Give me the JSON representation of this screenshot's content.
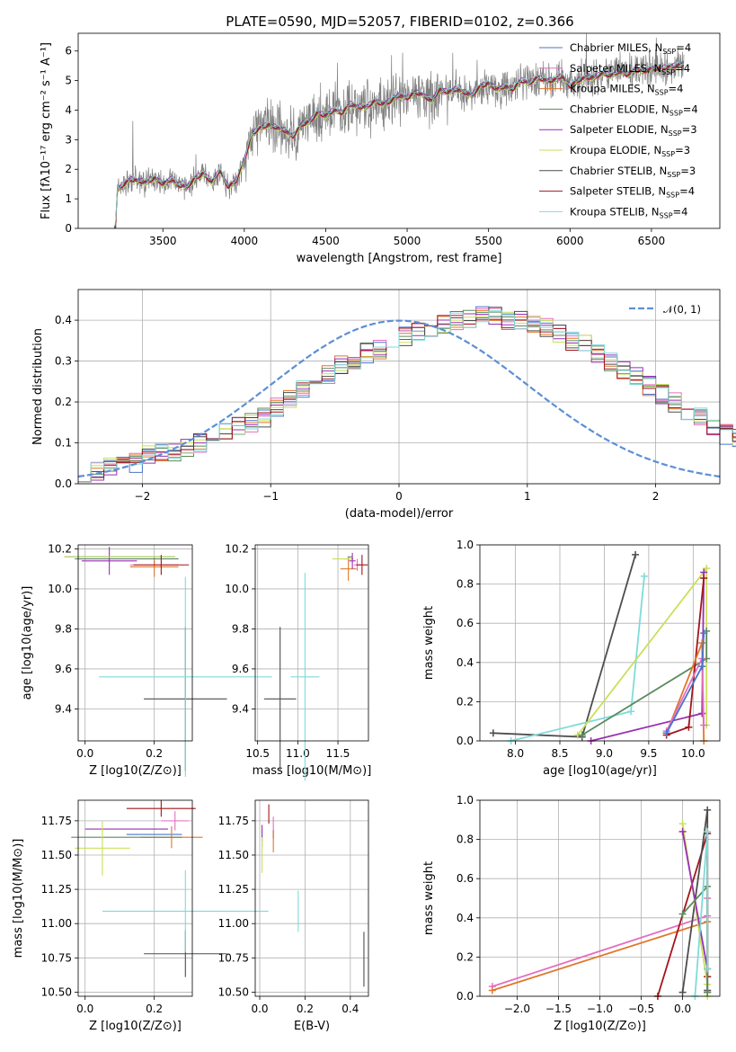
{
  "title": "PLATE=0590, MJD=52057, FIBERID=0102, z=0.366",
  "colors": {
    "chabrier_miles": "#4a74c9",
    "salpeter_miles": "#e36fc1",
    "kroupa_miles": "#e0772b",
    "chabrier_elodie": "#5c8a5c",
    "salpeter_elodie": "#9a2fb3",
    "kroupa_elodie": "#c8e05a",
    "chabrier_stelib": "#4d4d4d",
    "salpeter_stelib": "#a3141b",
    "kroupa_stelib": "#7fdbd9",
    "spectrum": "#7f7f7f",
    "normal_curve": "#5b8fd6"
  },
  "chart_data": [
    {
      "type": "line",
      "panel": "spectrum",
      "title": "PLATE=0590, MJD=52057, FIBERID=0102, z=0.366",
      "xlabel": "wavelength [Angstrom, rest frame]",
      "ylabel": "Flux [fλ10⁻¹⁷ erg cm⁻² s⁻¹ A⁻¹]",
      "xlim": [
        2980,
        6920
      ],
      "ylim": [
        0,
        6.6
      ],
      "xticks": [
        3500,
        4000,
        4500,
        5000,
        5500,
        6000,
        6500
      ],
      "yticks": [
        0,
        1,
        2,
        3,
        4,
        5,
        6
      ],
      "legend_position": "top-right",
      "model_continuum": {
        "x": [
          3200,
          3210,
          3220,
          3240,
          3300,
          3350,
          3400,
          3450,
          3500,
          3550,
          3600,
          3650,
          3700,
          3750,
          3800,
          3850,
          3900,
          3950,
          4000,
          4050,
          4100,
          4150,
          4200,
          4250,
          4300,
          4350,
          4400,
          4450,
          4500,
          4550,
          4600,
          4650,
          4700,
          4750,
          4800,
          4850,
          4900,
          4950,
          5000,
          5050,
          5100,
          5150,
          5200,
          5250,
          5300,
          5350,
          5400,
          5450,
          5500,
          5550,
          5600,
          5650,
          5700,
          5750,
          5800,
          5850,
          5900,
          5950,
          6000,
          6050,
          6100,
          6150,
          6200,
          6250,
          6300,
          6350,
          6400,
          6450,
          6500,
          6550,
          6600,
          6650,
          6700
        ],
        "y": [
          0.0,
          0.0,
          1.3,
          1.4,
          1.65,
          1.6,
          1.55,
          1.7,
          1.5,
          1.65,
          1.45,
          1.4,
          1.7,
          1.85,
          1.55,
          1.95,
          1.4,
          1.6,
          2.3,
          3.2,
          3.4,
          3.5,
          3.4,
          3.3,
          3.1,
          3.5,
          3.6,
          3.9,
          3.8,
          4.0,
          3.9,
          4.2,
          4.1,
          4.1,
          4.3,
          4.2,
          4.3,
          4.5,
          4.4,
          4.6,
          4.5,
          4.3,
          4.7,
          4.6,
          4.7,
          4.6,
          4.5,
          4.8,
          4.9,
          4.7,
          4.8,
          4.7,
          5.0,
          4.9,
          5.1,
          5.0,
          5.0,
          5.15,
          4.8,
          5.0,
          5.1,
          5.1,
          5.25,
          5.15,
          5.3,
          5.2,
          5.35,
          5.3,
          5.4,
          5.4,
          5.45,
          5.5,
          5.55
        ]
      },
      "legend": [
        "Chabrier MILES, N_SSP=4",
        "Salpeter MILES, N_SSP=4",
        "Kroupa MILES, N_SSP=4",
        "Chabrier ELODIE, N_SSP=4",
        "Salpeter ELODIE, N_SSP=3",
        "Kroupa ELODIE, N_SSP=3",
        "Chabrier STELIB, N_SSP=3",
        "Salpeter STELIB, N_SSP=4",
        "Kroupa STELIB, N_SSP=4"
      ]
    },
    {
      "type": "line",
      "panel": "residual-histogram",
      "xlabel": "(data-model)/error",
      "ylabel": "Normed distribution",
      "xlim": [
        -2.5,
        2.5
      ],
      "ylim": [
        0,
        0.475
      ],
      "xticks": [
        -2,
        -1,
        0,
        1,
        2
      ],
      "yticks": [
        0.0,
        0.1,
        0.2,
        0.3,
        0.4
      ],
      "grid": true,
      "legend": [
        "𝒩(0, 1)"
      ],
      "legend_position": "top-right",
      "bin_edges_start": -2.5,
      "bin_width": 0.1,
      "histogram": [
        0.03,
        0.03,
        0.04,
        0.05,
        0.05,
        0.07,
        0.08,
        0.08,
        0.09,
        0.1,
        0.11,
        0.13,
        0.14,
        0.15,
        0.16,
        0.19,
        0.21,
        0.23,
        0.25,
        0.27,
        0.29,
        0.3,
        0.32,
        0.33,
        0.34,
        0.36,
        0.37,
        0.38,
        0.39,
        0.4,
        0.4,
        0.41,
        0.41,
        0.4,
        0.4,
        0.39,
        0.38,
        0.37,
        0.35,
        0.34,
        0.32,
        0.3,
        0.28,
        0.26,
        0.24,
        0.22,
        0.2,
        0.18,
        0.16,
        0.14,
        0.12,
        0.11,
        0.1,
        0.09,
        0.08,
        0.07,
        0.06,
        0.05,
        0.04,
        0.04
      ]
    },
    {
      "type": "scatter",
      "panel": "age-vs-Z",
      "xlabel": "Z [log10(Z/Z⊙)]",
      "ylabel": "age  [log10(age/yr)]",
      "xlim": [
        -0.02,
        0.31
      ],
      "ylim": [
        9.24,
        10.22
      ],
      "xticks": [
        0.0,
        0.2
      ],
      "yticks": [
        9.4,
        9.6,
        9.8,
        10.0,
        10.2
      ],
      "grid": true,
      "points": [
        {
          "series": "chabrier_miles",
          "x": 0.1,
          "y": 10.16,
          "xerr": 0.16,
          "yerr": 0.0
        },
        {
          "series": "salpeter_miles",
          "x": 0.2,
          "y": 10.12,
          "xerr": 0.07,
          "yerr": 0.02
        },
        {
          "series": "kroupa_miles",
          "x": 0.2,
          "y": 10.11,
          "xerr": 0.07,
          "yerr": 0.05
        },
        {
          "series": "chabrier_elodie",
          "x": 0.12,
          "y": 10.15,
          "xerr": 0.15,
          "yerr": 0.0
        },
        {
          "series": "salpeter_elodie",
          "x": 0.07,
          "y": 10.14,
          "xerr": 0.08,
          "yerr": 0.07
        },
        {
          "series": "kroupa_elodie",
          "x": 0.1,
          "y": 10.16,
          "xerr": 0.16,
          "yerr": 0.0
        },
        {
          "series": "chabrier_stelib",
          "x": 0.29,
          "y": 9.45,
          "xerr": 0.12,
          "yerr": 0.36
        },
        {
          "series": "salpeter_stelib",
          "x": 0.22,
          "y": 10.12,
          "xerr": 0.08,
          "yerr": 0.05
        },
        {
          "series": "kroupa_stelib",
          "x": 0.29,
          "y": 9.56,
          "xerr": 0.25,
          "yerr": 0.5
        }
      ]
    },
    {
      "type": "scatter",
      "panel": "age-vs-mass",
      "xlabel": "mass [log10(M/M⊙)]",
      "ylabel": "",
      "xlim": [
        10.47,
        11.88
      ],
      "ylim": [
        9.24,
        10.22
      ],
      "xticks": [
        10.5,
        11.0,
        11.5
      ],
      "yticks": [
        9.4,
        9.6,
        9.8,
        10.0,
        10.2
      ],
      "grid": true,
      "points": [
        {
          "series": "chabrier_miles",
          "x": 11.65,
          "y": 10.16,
          "xerr": 0.03,
          "yerr": 0.0
        },
        {
          "series": "salpeter_miles",
          "x": 11.74,
          "y": 10.12,
          "xerr": 0.04,
          "yerr": 0.03
        },
        {
          "series": "kroupa_miles",
          "x": 11.63,
          "y": 10.1,
          "xerr": 0.1,
          "yerr": 0.06
        },
        {
          "series": "chabrier_elodie",
          "x": 11.63,
          "y": 10.15,
          "xerr": 0.06,
          "yerr": 0.0
        },
        {
          "series": "salpeter_elodie",
          "x": 11.68,
          "y": 10.14,
          "xerr": 0.04,
          "yerr": 0.04
        },
        {
          "series": "kroupa_elodie",
          "x": 11.55,
          "y": 10.15,
          "xerr": 0.12,
          "yerr": 0.0
        },
        {
          "series": "chabrier_stelib",
          "x": 10.78,
          "y": 9.45,
          "xerr": 0.2,
          "yerr": 0.36
        },
        {
          "series": "salpeter_stelib",
          "x": 11.8,
          "y": 10.12,
          "xerr": 0.07,
          "yerr": 0.05
        },
        {
          "series": "kroupa_stelib",
          "x": 11.09,
          "y": 9.56,
          "xerr": 0.18,
          "yerr": 0.52
        }
      ]
    },
    {
      "type": "line",
      "panel": "mass-weight-vs-age",
      "xlabel": "age  [log10(age/yr)]",
      "ylabel": "mass weight",
      "xlim": [
        7.6,
        10.3
      ],
      "ylim": [
        0,
        1.0
      ],
      "xticks": [
        8.0,
        8.5,
        9.0,
        9.5,
        10.0
      ],
      "yticks": [
        0.0,
        0.2,
        0.4,
        0.6,
        0.8,
        1.0
      ],
      "grid": true,
      "series": [
        {
          "key": "chabrier_stelib",
          "x": [
            7.75,
            8.75,
            9.35
          ],
          "y": [
            0.04,
            0.02,
            0.95
          ]
        },
        {
          "key": "kroupa_stelib",
          "x": [
            7.95,
            9.3,
            9.45
          ],
          "y": [
            0.0,
            0.15,
            0.84
          ]
        },
        {
          "key": "kroupa_elodie",
          "x": [
            8.7,
            10.15,
            10.15
          ],
          "y": [
            0.03,
            0.88,
            0.08
          ]
        },
        {
          "key": "chabrier_elodie",
          "x": [
            8.75,
            10.15,
            10.15
          ],
          "y": [
            0.03,
            0.42,
            0.56
          ]
        },
        {
          "key": "salpeter_elodie",
          "x": [
            8.85,
            10.1,
            10.12
          ],
          "y": [
            0.0,
            0.14,
            0.86
          ]
        },
        {
          "key": "salpeter_stelib",
          "x": [
            9.7,
            9.95,
            10.12
          ],
          "y": [
            0.03,
            0.07,
            0.83
          ]
        },
        {
          "key": "kroupa_miles",
          "x": [
            9.7,
            10.1,
            10.12
          ],
          "y": [
            0.04,
            0.5,
            0.0
          ]
        },
        {
          "key": "salpeter_miles",
          "x": [
            9.7,
            10.1,
            10.12
          ],
          "y": [
            0.05,
            0.42,
            0.08
          ]
        },
        {
          "key": "chabrier_miles",
          "x": [
            9.7,
            10.1,
            10.12
          ],
          "y": [
            0.04,
            0.38,
            0.55
          ]
        }
      ]
    },
    {
      "type": "scatter",
      "panel": "mass-vs-Z",
      "xlabel": "Z [log10(Z/Z⊙)]",
      "ylabel": "mass [log10(M/M⊙)]",
      "xlim": [
        -0.02,
        0.31
      ],
      "ylim": [
        10.47,
        11.9
      ],
      "xticks": [
        0.0,
        0.2
      ],
      "yticks": [
        10.5,
        10.75,
        11.0,
        11.25,
        11.5,
        11.75
      ],
      "grid": true,
      "points": [
        {
          "series": "chabrier_miles",
          "x": 0.2,
          "y": 11.65,
          "xerr": 0.08,
          "yerr": 0.0
        },
        {
          "series": "salpeter_miles",
          "x": 0.26,
          "y": 11.75,
          "xerr": 0.04,
          "yerr": 0.07
        },
        {
          "series": "kroupa_miles",
          "x": 0.25,
          "y": 11.63,
          "xerr": 0.09,
          "yerr": 0.08
        },
        {
          "series": "chabrier_elodie",
          "x": 0.12,
          "y": 11.63,
          "xerr": 0.16,
          "yerr": 0.0
        },
        {
          "series": "salpeter_elodie",
          "x": 0.12,
          "y": 11.69,
          "xerr": 0.12,
          "yerr": 0.0
        },
        {
          "series": "kroupa_elodie",
          "x": 0.05,
          "y": 11.55,
          "xerr": 0.08,
          "yerr": 0.2
        },
        {
          "series": "chabrier_stelib",
          "x": 0.29,
          "y": 10.78,
          "xerr": 0.12,
          "yerr": 0.17
        },
        {
          "series": "salpeter_stelib",
          "x": 0.22,
          "y": 11.84,
          "xerr": 0.1,
          "yerr": 0.06
        },
        {
          "series": "kroupa_stelib",
          "x": 0.29,
          "y": 11.09,
          "xerr": 0.24,
          "yerr": 0.3
        }
      ]
    },
    {
      "type": "scatter",
      "panel": "mass-vs-EBV",
      "xlabel": "E(B-V)",
      "ylabel": "",
      "xlim": [
        -0.02,
        0.48
      ],
      "ylim": [
        10.47,
        11.9
      ],
      "xticks": [
        0.0,
        0.2,
        0.4
      ],
      "yticks": [
        10.5,
        10.75,
        11.0,
        11.25,
        11.5,
        11.75
      ],
      "grid": true,
      "points": [
        {
          "series": "chabrier_miles",
          "x": 0.06,
          "y": 11.65,
          "xerr": 0.0,
          "yerr": 0.03
        },
        {
          "series": "salpeter_miles",
          "x": 0.06,
          "y": 11.72,
          "xerr": 0.0,
          "yerr": 0.06
        },
        {
          "series": "kroupa_miles",
          "x": 0.06,
          "y": 11.6,
          "xerr": 0.0,
          "yerr": 0.08
        },
        {
          "series": "chabrier_elodie",
          "x": 0.01,
          "y": 11.62,
          "xerr": 0.0,
          "yerr": 0.06
        },
        {
          "series": "salpeter_elodie",
          "x": 0.01,
          "y": 11.66,
          "xerr": 0.0,
          "yerr": 0.06
        },
        {
          "series": "kroupa_elodie",
          "x": 0.01,
          "y": 11.5,
          "xerr": 0.0,
          "yerr": 0.13
        },
        {
          "series": "chabrier_stelib",
          "x": 0.46,
          "y": 10.74,
          "xerr": 0.0,
          "yerr": 0.2
        },
        {
          "series": "salpeter_stelib",
          "x": 0.04,
          "y": 11.8,
          "xerr": 0.0,
          "yerr": 0.07
        },
        {
          "series": "kroupa_stelib",
          "x": 0.17,
          "y": 11.09,
          "xerr": 0.0,
          "yerr": 0.15
        }
      ]
    },
    {
      "type": "line",
      "panel": "mass-weight-vs-Z",
      "xlabel": "Z [log10(Z/Z⊙)]",
      "ylabel": "mass weight",
      "xlim": [
        -2.45,
        0.45
      ],
      "ylim": [
        0,
        1.0
      ],
      "xticks": [
        -2.0,
        -1.5,
        -1.0,
        -0.5,
        0.0
      ],
      "yticks": [
        0.0,
        0.2,
        0.4,
        0.6,
        0.8,
        1.0
      ],
      "grid": true,
      "series": [
        {
          "key": "salpeter_miles",
          "x": [
            -2.3,
            0.3,
            0.3
          ],
          "y": [
            0.05,
            0.41,
            0.5
          ]
        },
        {
          "key": "kroupa_miles",
          "x": [
            -2.3,
            0.3,
            0.3
          ],
          "y": [
            0.03,
            0.38,
            0.1
          ]
        },
        {
          "key": "salpeter_stelib",
          "x": [
            -0.3,
            0.3,
            0.3
          ],
          "y": [
            0.0,
            0.83,
            0.1
          ]
        },
        {
          "key": "chabrier_stelib",
          "x": [
            0.0,
            0.3,
            0.3
          ],
          "y": [
            0.02,
            0.95,
            0.03
          ]
        },
        {
          "key": "kroupa_elodie",
          "x": [
            0.0,
            0.3,
            0.3
          ],
          "y": [
            0.88,
            0.06,
            0.0
          ]
        },
        {
          "key": "salpeter_elodie",
          "x": [
            0.0,
            0.3,
            0.3
          ],
          "y": [
            0.84,
            0.14,
            0.02
          ]
        },
        {
          "key": "chabrier_elodie",
          "x": [
            0.0,
            0.3,
            0.3
          ],
          "y": [
            0.42,
            0.56,
            0.02
          ]
        },
        {
          "key": "kroupa_stelib",
          "x": [
            0.15,
            0.3,
            0.3
          ],
          "y": [
            0.0,
            0.84,
            0.14
          ]
        }
      ]
    }
  ],
  "labels": {
    "spectrum_xlabel": "wavelength [Angstrom, rest frame]",
    "hist_xlabel": "(data-model)/error",
    "hist_ylabel": "Normed distribution",
    "normal_label": "𝒩(0, 1)",
    "massweight_ylabel": "mass weight",
    "ebv_xlabel": "E(B-V)"
  }
}
